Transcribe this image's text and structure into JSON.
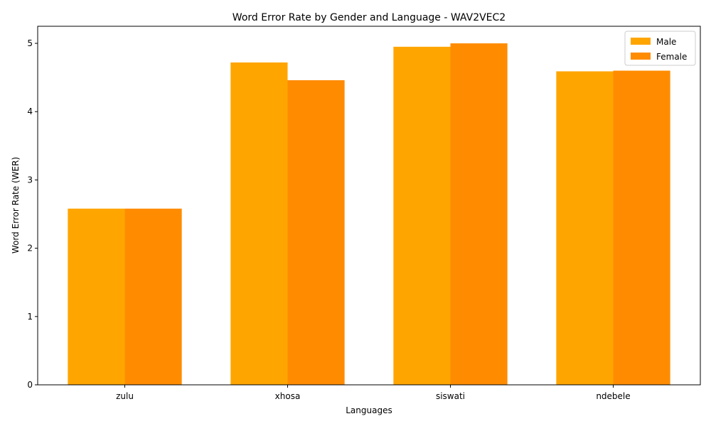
{
  "chart_data": {
    "type": "bar",
    "title": "Word Error Rate by Gender and Language - WAV2VEC2",
    "xlabel": "Languages",
    "ylabel": "Word Error Rate (WER)",
    "categories": [
      "zulu",
      "xhosa",
      "siswati",
      "ndebele"
    ],
    "series": [
      {
        "name": "Male",
        "color": "#ffa500",
        "values": [
          2.58,
          4.72,
          4.95,
          4.59
        ]
      },
      {
        "name": "Female",
        "color": "#ff8c00",
        "values": [
          2.58,
          4.46,
          5.0,
          4.6
        ]
      }
    ],
    "ylim": [
      0,
      5.25
    ],
    "yticks": [
      0,
      1,
      2,
      3,
      4,
      5
    ],
    "legend_position": "top-right",
    "grid": false
  }
}
